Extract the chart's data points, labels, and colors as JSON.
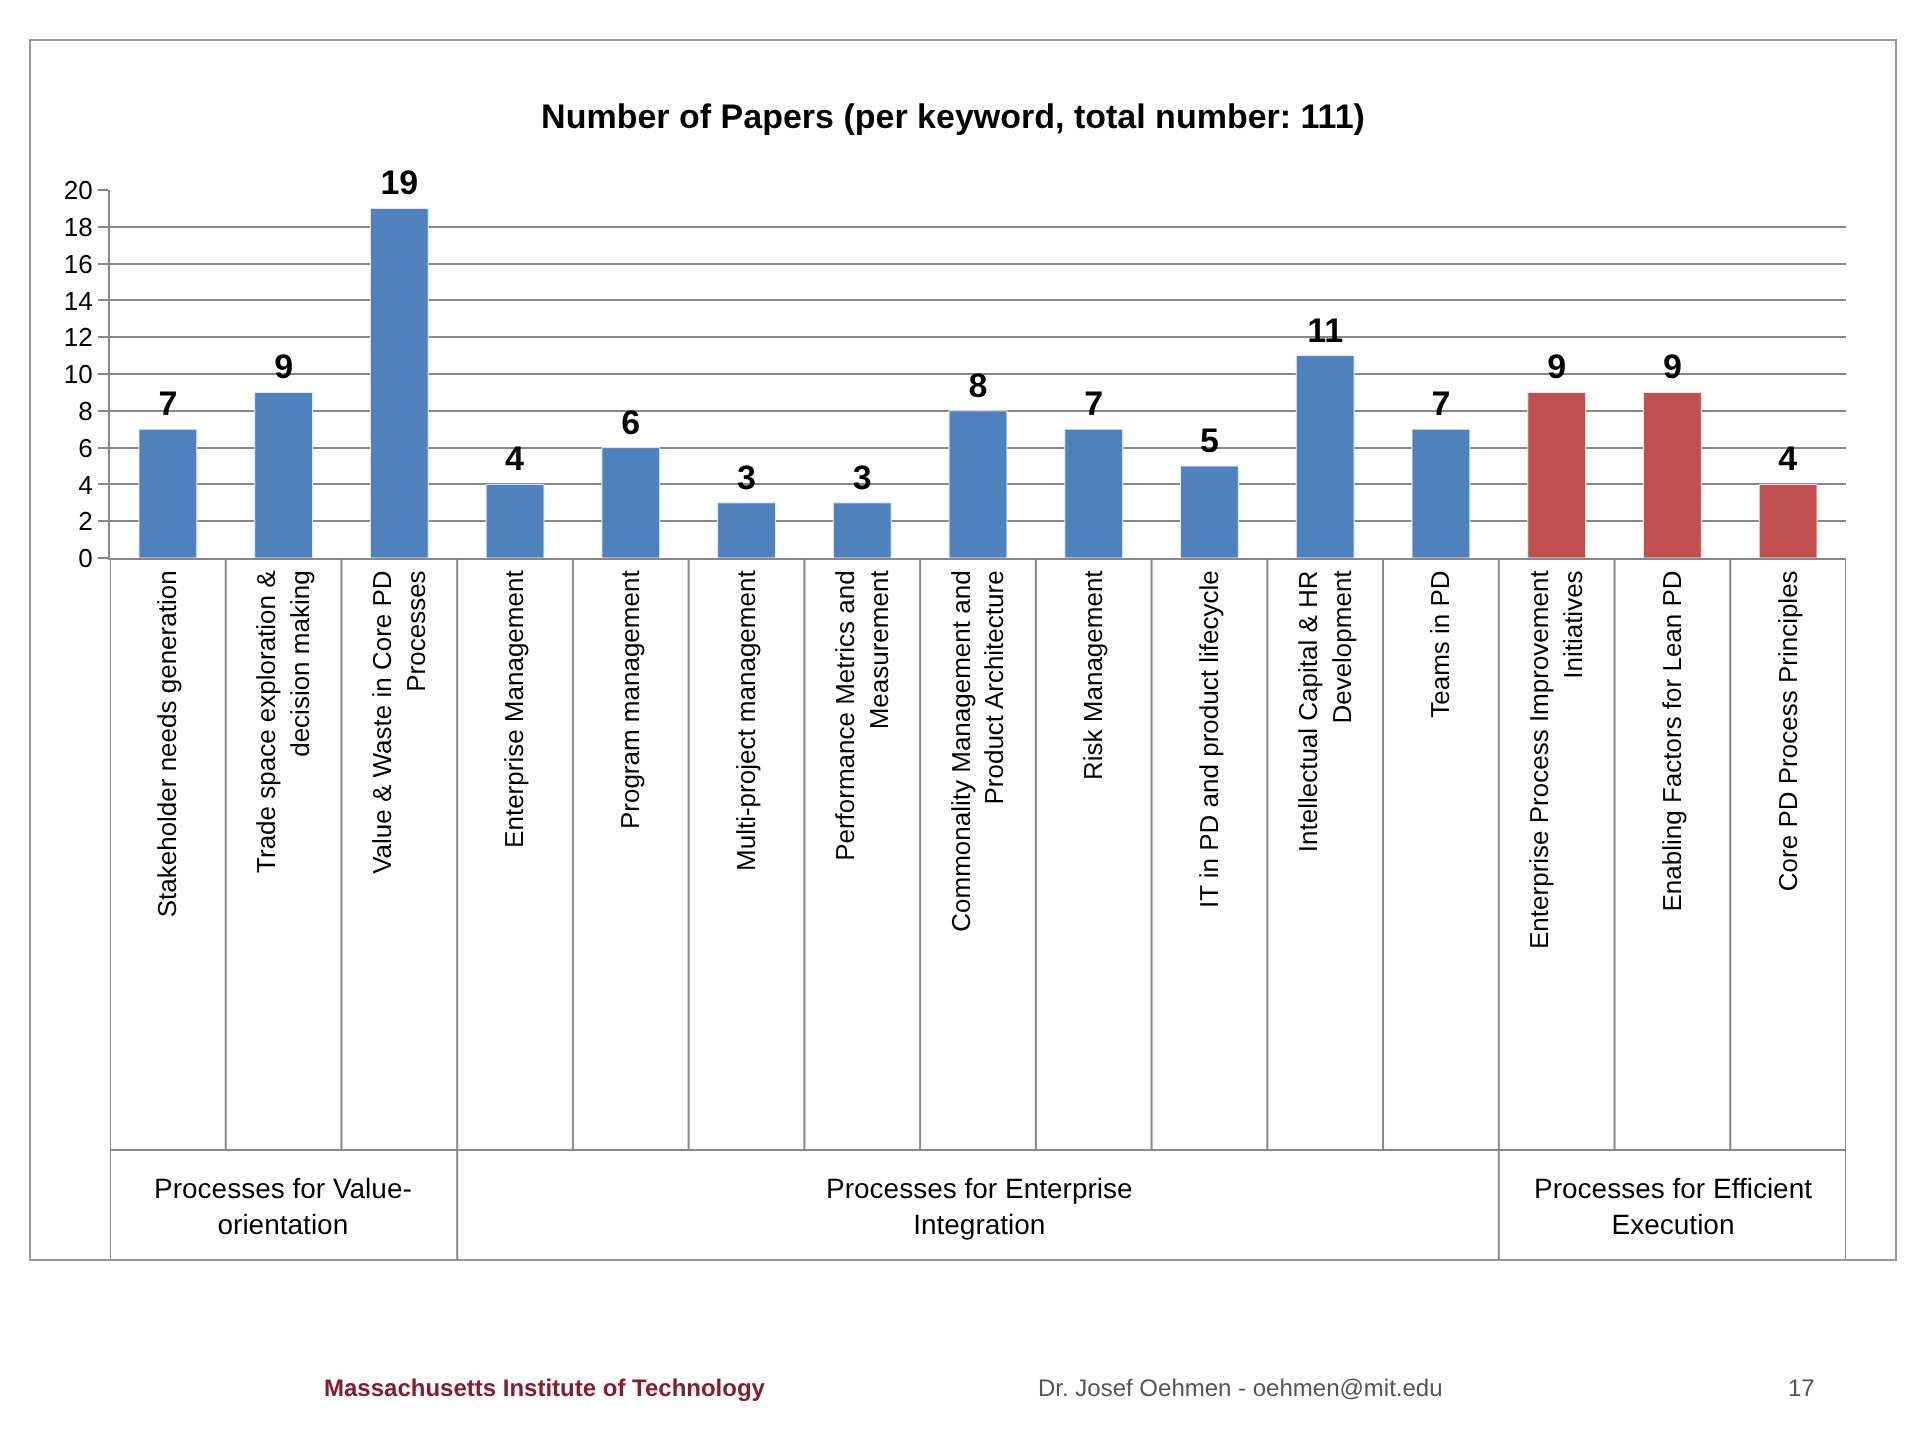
{
  "chart_data": {
    "type": "bar",
    "title": "Number of Papers (per keyword, total number: 111)",
    "categories": [
      "Stakeholder needs generation",
      "Trade space exploration & decision making",
      "Value & Waste in Core PD Processes",
      "Enterprise Management",
      "Program management",
      "Multi-project management",
      "Performance Metrics and Measurement",
      "Commonality Management and Product Architecture",
      "Risk Management",
      "IT in PD and product lifecycle",
      "Intellectual Capital & HR Development",
      "Teams in PD",
      "Enterprise Process Improvement Initiatives",
      "Enabling Factors for Lean PD",
      "Core PD Process Principles"
    ],
    "values": [
      7,
      9,
      19,
      4,
      6,
      3,
      3,
      8,
      7,
      5,
      11,
      7,
      9,
      9,
      4
    ],
    "colors": [
      "#4f81bd",
      "#4f81bd",
      "#4f81bd",
      "#4f81bd",
      "#4f81bd",
      "#4f81bd",
      "#4f81bd",
      "#4f81bd",
      "#4f81bd",
      "#4f81bd",
      "#4f81bd",
      "#4f81bd",
      "#c0504d",
      "#c0504d",
      "#c0504d"
    ],
    "ylim": [
      0,
      20
    ],
    "yticks": [
      0,
      2,
      4,
      6,
      8,
      10,
      12,
      14,
      16,
      18,
      20
    ],
    "grid": "y",
    "data_labels": true,
    "annotations": [
      "Processes for Value-orientation",
      "Processes for Enterprise Integration",
      "Processes for Efficient Execution",
      "Massachusetts Institute of Technology",
      "Dr. Josef Oehmen - oehmen@mit.edu",
      "17"
    ]
  }
}
